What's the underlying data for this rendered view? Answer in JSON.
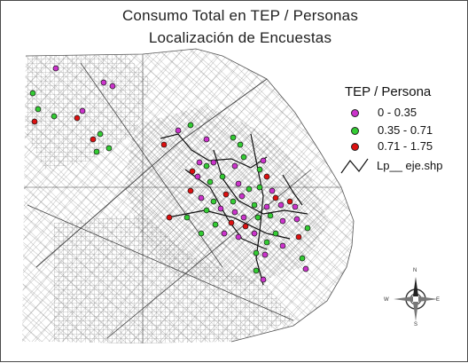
{
  "title": {
    "line1": "Consumo Total  en TEP / Personas",
    "line2": "Localización de Encuestas"
  },
  "legend": {
    "title": "TEP / Persona",
    "classes": [
      {
        "label": "0 - 0.35",
        "color": "#cc33cc"
      },
      {
        "label": "0.35 - 0.71",
        "color": "#33cc33"
      },
      {
        "label": "0.71 - 1.75",
        "color": "#dd1111"
      }
    ],
    "line_label": "Lp__ eje.shp"
  },
  "compass": {
    "n": "N",
    "s": "S",
    "e": "E",
    "w": "W"
  },
  "colors": {
    "street": "#555555",
    "frame": "#4a4a4a",
    "background": "#ffffff"
  }
}
